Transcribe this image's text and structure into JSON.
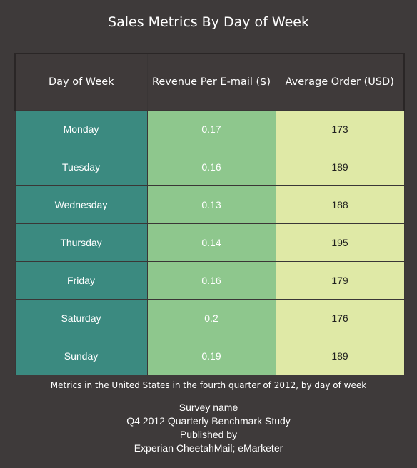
{
  "chart_data": {
    "type": "table",
    "title": "Sales Metrics By Day of Week",
    "columns": [
      "Day of Week",
      "Revenue Per E-mail ($)",
      "Average Order (USD)"
    ],
    "rows": [
      {
        "day": "Monday",
        "revenue_per_email": "0.17",
        "average_order": "173"
      },
      {
        "day": "Tuesday",
        "revenue_per_email": "0.16",
        "average_order": "189"
      },
      {
        "day": "Wednesday",
        "revenue_per_email": "0.13",
        "average_order": "188"
      },
      {
        "day": "Thursday",
        "revenue_per_email": "0.14",
        "average_order": "195"
      },
      {
        "day": "Friday",
        "revenue_per_email": "0.16",
        "average_order": "179"
      },
      {
        "day": "Saturday",
        "revenue_per_email": "0.2",
        "average_order": "176"
      },
      {
        "day": "Sunday",
        "revenue_per_email": "0.19",
        "average_order": "189"
      }
    ],
    "subtitle": "Metrics in the United States in the fourth quarter of 2012, by day of week",
    "source_lines": [
      "Survey name",
      "Q4 2012 Quarterly Benchmark Study",
      "Published by",
      "Experian CheetahMail; eMarketer"
    ],
    "colors": {
      "background": "#3e3a3a",
      "header": "#3f3a3a",
      "day_column": "#3b8a80",
      "revenue_column": "#8ec78d",
      "average_column": "#dfe9a6"
    }
  }
}
